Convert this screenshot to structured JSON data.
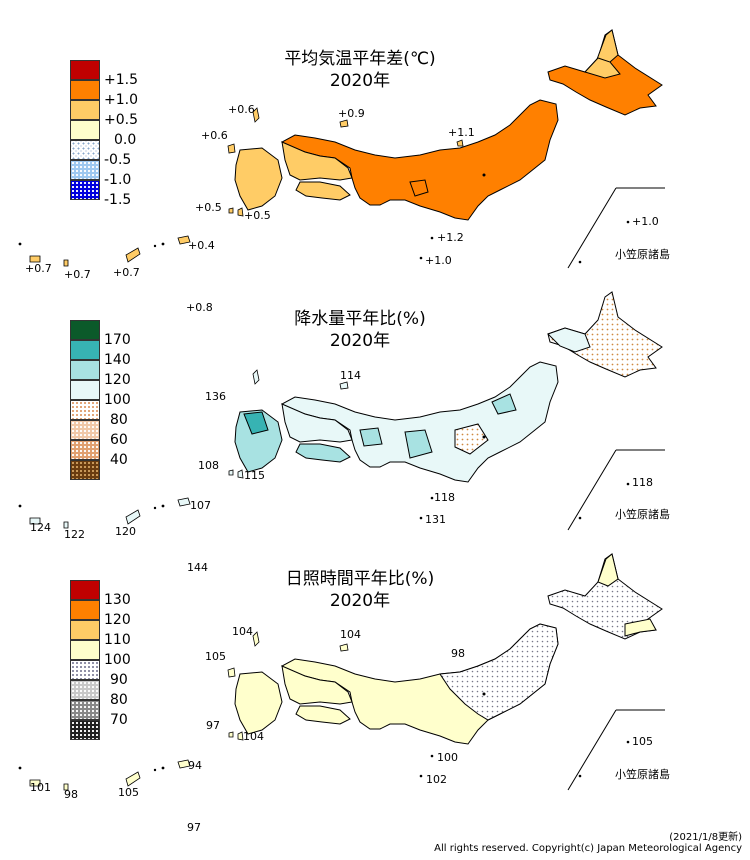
{
  "panels": [
    {
      "title": "平均気温平年差(℃)",
      "year": "2020年",
      "legend": [
        {
          "label": "+1.5",
          "color": "#c00000",
          "pattern": "solid"
        },
        {
          "label": "+1.0",
          "color": "#ff8000",
          "pattern": "solid"
        },
        {
          "label": "+0.5",
          "color": "#ffcc66",
          "pattern": "solid"
        },
        {
          "label": "0.0",
          "color": "#ffffcc",
          "pattern": "solid"
        },
        {
          "label": "-0.5",
          "color": "#e6f2ff",
          "pattern": "dots"
        },
        {
          "label": "-1.0",
          "color": "#9ec8f0",
          "pattern": "dots"
        },
        {
          "label": "-1.5",
          "color": "#0000dd",
          "pattern": "dots"
        }
      ],
      "values": {
        "tsushima": "+0.6",
        "goto": "+0.6",
        "oki": "+0.9",
        "hachijo": "+1.1",
        "koshiki": "+0.5",
        "tanegashima": "+0.5",
        "izu_a": "+1.2",
        "izu_b": "+1.0",
        "amami": "+0.4",
        "okinawa": "+0.7",
        "ishigaki": "+0.7",
        "yonaguni": "+0.7",
        "daito": "+0.8",
        "chichijima": "+1.0"
      },
      "ogasawara_label": "小笠原諸島"
    },
    {
      "title": "降水量平年比(%)",
      "year": "2020年",
      "legend": [
        {
          "label": "170",
          "color": "#0b5a2a",
          "pattern": "solid"
        },
        {
          "label": "140",
          "color": "#37b3b3",
          "pattern": "solid"
        },
        {
          "label": "120",
          "color": "#a8e2e2",
          "pattern": "solid"
        },
        {
          "label": "100",
          "color": "#e8f8f8",
          "pattern": "solid"
        },
        {
          "label": "80",
          "color": "#f6dcc6",
          "pattern": "dots"
        },
        {
          "label": "60",
          "color": "#e0a070",
          "pattern": "dots"
        },
        {
          "label": "40",
          "color": "#6a3c10",
          "pattern": "dots"
        }
      ],
      "values": {
        "tsushima": "136",
        "oki": "114",
        "koshiki": "108",
        "tanegashima": "115",
        "izu": "118",
        "izu_b": "131",
        "amami": "107",
        "okinawa": "120",
        "ishigaki": "124",
        "yonaguni": "122",
        "daito": "144",
        "chichijima": "118"
      },
      "ogasawara_label": "小笠原諸島"
    },
    {
      "title": "日照時間平年比(%)",
      "year": "2020年",
      "legend": [
        {
          "label": "130",
          "color": "#c00000",
          "pattern": "solid"
        },
        {
          "label": "120",
          "color": "#ff8000",
          "pattern": "solid"
        },
        {
          "label": "110",
          "color": "#ffcc66",
          "pattern": "solid"
        },
        {
          "label": "100",
          "color": "#ffffcc",
          "pattern": "solid"
        },
        {
          "label": "90",
          "color": "#eeeef4",
          "pattern": "dots"
        },
        {
          "label": "80",
          "color": "#a9a9a9",
          "pattern": "dots"
        },
        {
          "label": "70",
          "color": "#303030",
          "pattern": "dots"
        }
      ],
      "values": {
        "tsushima": "104",
        "goto": "105",
        "oki": "104",
        "hachijo": "98",
        "koshiki": "97",
        "tanegashima": "104",
        "izu": "100",
        "izu_b": "102",
        "amami": "94",
        "okinawa": "105",
        "ishigaki": "101",
        "yonaguni": "98",
        "daito": "97",
        "chichijima": "105"
      },
      "ogasawara_label": "小笠原諸島"
    }
  ],
  "footer": {
    "date": "(2021/1/8更新)",
    "copyright": "All rights reserved. Copyright(c) Japan Meteorological Agency"
  }
}
